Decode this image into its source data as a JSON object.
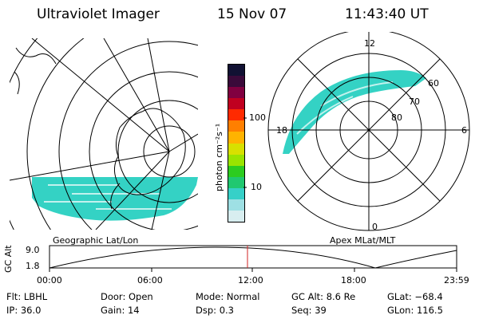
{
  "header": {
    "instrument": "Ultraviolet Imager",
    "date": "15 Nov 07",
    "time": "11:43:40 UT"
  },
  "left_map": {
    "caption": "Geographic Lat/Lon",
    "fill_color": "#34d2c4"
  },
  "colorbar": {
    "unit_label": "photon cm⁻²s⁻¹",
    "ticks": [
      "100",
      "10"
    ],
    "colors": [
      "#111133",
      "#3a0a3a",
      "#800040",
      "#c00020",
      "#ff2a00",
      "#ff7f00",
      "#ffb300",
      "#d8e000",
      "#9ae400",
      "#2ccc20",
      "#20c870",
      "#36d0c8",
      "#9ee0e4",
      "#d8eef0"
    ]
  },
  "right_map": {
    "caption": "Apex MLat/MLT",
    "mlt_labels": {
      "top": "12",
      "left": "18",
      "right": "6",
      "bottom": "0"
    },
    "mlat_labels": [
      "60",
      "70",
      "80"
    ],
    "fill_color": "#34d2c4"
  },
  "altitude_plot": {
    "ylabel": "GC Alt",
    "yticks": [
      "9.0",
      "1.8"
    ],
    "xticks": [
      "00:00",
      "06:00",
      "12:00",
      "18:00",
      "23:59"
    ],
    "marker_color": "#d02020"
  },
  "status": {
    "row1": [
      {
        "label": "Flt:",
        "value": "LBHL"
      },
      {
        "label": "Door:",
        "value": "Open"
      },
      {
        "label": "Mode:",
        "value": "Normal"
      },
      {
        "label": "GC Alt:",
        "value": "8.6 Re"
      },
      {
        "label": "GLat:",
        "value": "−68.4"
      }
    ],
    "row2": [
      {
        "label": "IP:",
        "value": "36.0"
      },
      {
        "label": "Gain:",
        "value": "14"
      },
      {
        "label": "Dsp:",
        "value": "0.3"
      },
      {
        "label": "Seq:",
        "value": "39"
      },
      {
        "label": "GLon:",
        "value": "116.5"
      }
    ]
  }
}
